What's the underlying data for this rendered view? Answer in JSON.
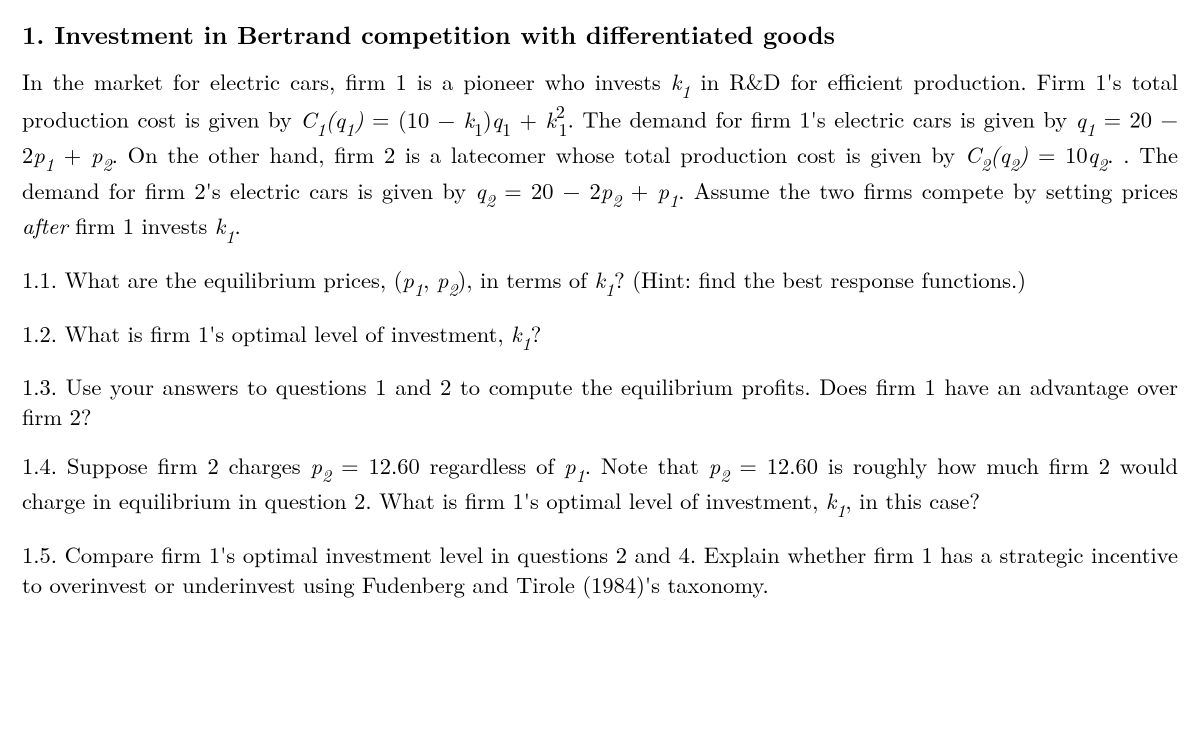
{
  "title_number": "1.",
  "title_text": "Investment in Bertrand competition with differentiated goods",
  "intro": {
    "s1a": "In the market for electric cars, firm 1 is a pioneer who invests ",
    "k1": "k",
    "k1_sub": "1",
    "s1b": " in R&D for efficient production. Firm 1's total production cost is given by ",
    "c1": "C",
    "c1_sub": "1",
    "lp": "(",
    "q1": "q",
    "q1_sub": "1",
    "rp": ")",
    "eq": " = ",
    "ten_minus": "(10 − ",
    "rpq": ")",
    "plus": " + ",
    "k1sq_sup": "2",
    "period": ". ",
    "s2": "The demand for firm 1's electric cars is given by ",
    "eq2": " = 20 − 2",
    "p1": "p",
    "p1_sub": "1",
    "p2": "p",
    "p2_sub": "2",
    "s3": ". On the other hand, firm 2 is a latecomer whose total production cost is given by ",
    "c2": "C",
    "c2_sub": "2",
    "q2": "q",
    "q2_sub": "2",
    "eq3": " = 10",
    "s4": ". The demand for firm 2's electric cars is given by ",
    "eq4": " = 20 − 2",
    "s5": ". Assume the two firms compete by setting prices ",
    "after": "after",
    "s6": " firm 1 invests ",
    "end": "."
  },
  "q11": {
    "num": "1.1. ",
    "a": "What are the equilibrium prices, (",
    "comma": ", ",
    "b": "), in terms of ",
    "c": "? (Hint: find the best response functions.)"
  },
  "q12": {
    "num": "1.2. ",
    "a": "What is firm 1's optimal level of investment, ",
    "b": "?"
  },
  "q13": {
    "num": "1.3. ",
    "a": "Use your answers to questions 1 and 2 to compute the equilibrium profits. Does firm 1 have an advantage over firm 2?"
  },
  "q14": {
    "num": "1.4. ",
    "a": "Suppose firm 2 charges ",
    "val": " = 12.60 regardless of ",
    "b": ". Note that ",
    "val2": " = 12.60 is roughly how much firm 2 would charge in equilibrium in question 2. What is firm 1's optimal level of investment, ",
    "c": ", in this case?"
  },
  "q15": {
    "num": "1.5. ",
    "a": "Compare firm 1's optimal investment level in questions 2 and 4. Explain whether firm 1 has a strategic incentive to overinvest or underinvest using Fudenberg and Tirole (1984)'s taxonomy."
  }
}
